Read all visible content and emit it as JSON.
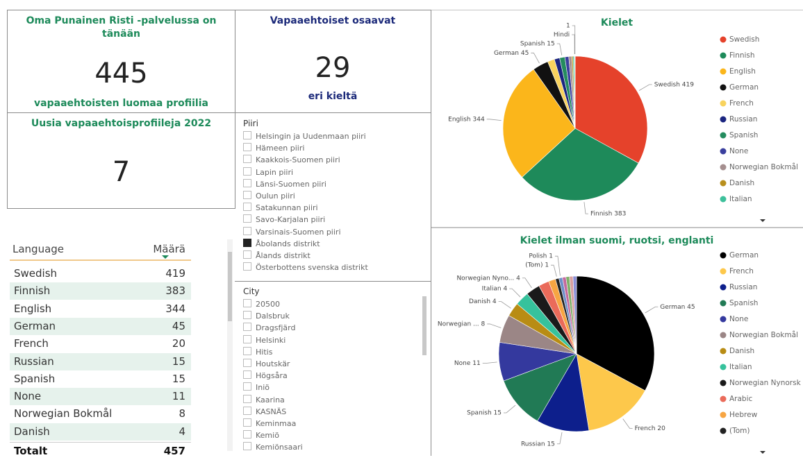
{
  "cards": [
    {
      "title": "Oma Punainen Risti -palvelussa on tänään",
      "value": "445",
      "subtitle": "vapaaehtoisten luomaa profiilia"
    },
    {
      "title": "Vapaaehtoiset osaavat",
      "value": "29",
      "subtitle": "eri kieltä"
    },
    {
      "title": "Uusia vapaaehtoisprofiileja 2022",
      "value": "7"
    }
  ],
  "table": {
    "columns": [
      "Language",
      "Määrä"
    ],
    "rows": [
      [
        "Swedish",
        "419"
      ],
      [
        "Finnish",
        "383"
      ],
      [
        "English",
        "344"
      ],
      [
        "German",
        "45"
      ],
      [
        "French",
        "20"
      ],
      [
        "Russian",
        "15"
      ],
      [
        "Spanish",
        "15"
      ],
      [
        "None",
        "11"
      ],
      [
        "Norwegian Bokmål",
        "8"
      ],
      [
        "Danish",
        "4"
      ]
    ],
    "total": [
      "Totalt",
      "457"
    ]
  },
  "slicers": [
    {
      "title": "Piiri",
      "items": [
        {
          "label": "Helsingin ja Uudenmaan piiri",
          "checked": false
        },
        {
          "label": "Hämeen piiri",
          "checked": false
        },
        {
          "label": "Kaakkois-Suomen piiri",
          "checked": false
        },
        {
          "label": "Lapin piiri",
          "checked": false
        },
        {
          "label": "Länsi-Suomen piiri",
          "checked": false
        },
        {
          "label": "Oulun piiri",
          "checked": false
        },
        {
          "label": "Satakunnan piiri",
          "checked": false
        },
        {
          "label": "Savo-Karjalan piiri",
          "checked": false
        },
        {
          "label": "Varsinais-Suomen piiri",
          "checked": false
        },
        {
          "label": "Åbolands distrikt",
          "checked": true
        },
        {
          "label": "Ålands distrikt",
          "checked": false
        },
        {
          "label": "Österbottens svenska distrikt",
          "checked": false
        }
      ]
    },
    {
      "title": "City",
      "items": [
        {
          "label": "20500",
          "checked": false
        },
        {
          "label": "Dalsbruk",
          "checked": false
        },
        {
          "label": "Dragsfjärd",
          "checked": false
        },
        {
          "label": "Helsinki",
          "checked": false
        },
        {
          "label": "Hitis",
          "checked": false
        },
        {
          "label": "Houtskär",
          "checked": false
        },
        {
          "label": "Högsåra",
          "checked": false
        },
        {
          "label": "Iniö",
          "checked": false
        },
        {
          "label": "Kaarina",
          "checked": false
        },
        {
          "label": "KASNÄS",
          "checked": false
        },
        {
          "label": "Keminmaa",
          "checked": false
        },
        {
          "label": "Kemiö",
          "checked": false
        },
        {
          "label": "Kemiönsaari",
          "checked": false
        }
      ]
    }
  ],
  "chart_data": [
    {
      "type": "pie",
      "title": "Kielet",
      "categories": [
        "Swedish",
        "Finnish",
        "English",
        "German",
        "French",
        "Russian",
        "Spanish",
        "None",
        "Norwegian Bokmål",
        "Danish",
        "Italian",
        "Hindi",
        null
      ],
      "values": [
        419,
        383,
        344,
        45,
        20,
        15,
        15,
        11,
        8,
        4,
        4,
        1,
        1
      ],
      "value_labels": [
        "Swedish 419",
        "Finnish 383",
        "English 344",
        "German 45",
        null,
        null,
        "Spanish 15",
        null,
        null,
        null,
        null,
        "Hindi",
        "1"
      ],
      "colors": [
        "#e5422b",
        "#1e8a5a",
        "#fbb61b",
        "#111111",
        "#f8d35e",
        "#1b2580",
        "#248c5f",
        "#3a3f9e",
        "#a58f8f",
        "#b88f1d",
        "#3dc09b",
        "#e86c5a",
        "#f0a64a"
      ],
      "legend": "right"
    },
    {
      "type": "pie",
      "title": "Kielet ilman suomi, ruotsi, englanti",
      "categories": [
        "German",
        "French",
        "Russian",
        "Spanish",
        "None",
        "Norwegian Bokmål",
        "Danish",
        "Italian",
        "Norwegian Nynorsk",
        "Arabic",
        "Hebrew",
        "(Tom)",
        "Polish",
        null,
        null,
        null,
        null
      ],
      "values": [
        45,
        20,
        15,
        15,
        11,
        8,
        4,
        4,
        4,
        3,
        2,
        1,
        1,
        1,
        1,
        1,
        1
      ],
      "value_labels": [
        "German 45",
        "French 20",
        "Russian 15",
        "Spanish 15",
        "None 11",
        "Norwegian ... 8",
        "Danish 4",
        "Italian 4",
        "Norwegian Nyno... 4",
        null,
        null,
        "(Tom) 1",
        "Polish 1",
        null,
        null,
        null,
        null
      ],
      "colors": [
        "#000000",
        "#fdc84b",
        "#0d1f8c",
        "#217a55",
        "#34399e",
        "#9b8686",
        "#b88c14",
        "#36c29c",
        "#1a1a1a",
        "#ea6b5a",
        "#f7a542",
        "#222222",
        "#6e8fc9",
        "#c46a9e",
        "#7fb069",
        "#d9a0a0",
        "#8a8fd6"
      ],
      "legend": "right"
    }
  ]
}
